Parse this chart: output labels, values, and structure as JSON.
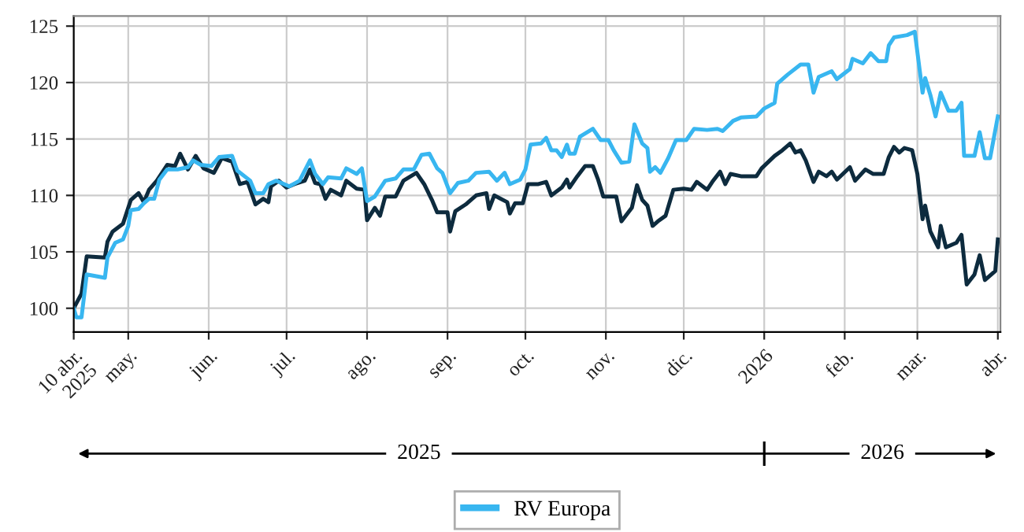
{
  "chart_data": {
    "type": "line",
    "xlim": [
      "2025-04-10",
      "2026-04-02"
    ],
    "ylim": [
      97.9,
      125.9
    ],
    "yticks": [
      100,
      105,
      110,
      115,
      120,
      125
    ],
    "xticks": [
      {
        "value": "2025-04-10",
        "label": "10 abr.\n2025"
      },
      {
        "value": "2025-05-01",
        "label": "may."
      },
      {
        "value": "2025-06-01",
        "label": "jun."
      },
      {
        "value": "2025-07-01",
        "label": "jul."
      },
      {
        "value": "2025-08-01",
        "label": "ago."
      },
      {
        "value": "2025-09-01",
        "label": "sep."
      },
      {
        "value": "2025-10-01",
        "label": "oct."
      },
      {
        "value": "2025-11-01",
        "label": "nov."
      },
      {
        "value": "2025-12-01",
        "label": "dic."
      },
      {
        "value": "2026-01-01",
        "label": "2026"
      },
      {
        "value": "2026-02-01",
        "label": "feb."
      },
      {
        "value": "2026-03-01",
        "label": "mar."
      },
      {
        "value": "2026-04-01",
        "label": "abr."
      }
    ],
    "grid": true,
    "legend": "bottom",
    "annotations": [
      "2025",
      "2026"
    ],
    "series": [
      {
        "color": "#0d2b3e",
        "x": [
          "2025-04-10",
          "2025-04-13",
          "2025-04-15",
          "2025-04-22",
          "2025-04-23",
          "2025-04-25",
          "2025-04-29",
          "2025-05-02",
          "2025-05-05",
          "2025-05-07",
          "2025-05-09",
          "2025-05-12",
          "2025-05-16",
          "2025-05-19",
          "2025-05-21",
          "2025-05-24",
          "2025-05-27",
          "2025-05-30",
          "2025-06-03",
          "2025-06-06",
          "2025-06-10",
          "2025-06-13",
          "2025-06-16",
          "2025-06-19",
          "2025-06-22",
          "2025-06-24",
          "2025-06-25",
          "2025-06-28",
          "2025-07-01",
          "2025-07-04",
          "2025-07-08",
          "2025-07-10",
          "2025-07-12",
          "2025-07-14",
          "2025-07-16",
          "2025-07-18",
          "2025-07-22",
          "2025-07-24",
          "2025-07-28",
          "2025-07-31",
          "2025-08-01",
          "2025-08-04",
          "2025-08-06",
          "2025-08-08",
          "2025-08-12",
          "2025-08-15",
          "2025-08-20",
          "2025-08-23",
          "2025-08-26",
          "2025-08-28",
          "2025-09-01",
          "2025-09-02",
          "2025-09-04",
          "2025-09-08",
          "2025-09-12",
          "2025-09-16",
          "2025-09-17",
          "2025-09-19",
          "2025-09-24",
          "2025-09-25",
          "2025-09-27",
          "2025-09-30",
          "2025-10-02",
          "2025-10-06",
          "2025-10-09",
          "2025-10-11",
          "2025-10-15",
          "2025-10-17",
          "2025-10-18",
          "2025-10-21",
          "2025-10-24",
          "2025-10-27",
          "2025-10-29",
          "2025-10-31",
          "2025-11-05",
          "2025-11-07",
          "2025-11-11",
          "2025-11-13",
          "2025-11-15",
          "2025-11-17",
          "2025-11-19",
          "2025-11-21",
          "2025-11-24",
          "2025-11-27",
          "2025-12-01",
          "2025-12-04",
          "2025-12-06",
          "2025-12-10",
          "2025-12-12",
          "2025-12-15",
          "2025-12-17",
          "2025-12-19",
          "2025-12-23",
          "2025-12-29",
          "2025-12-31",
          "2026-01-05",
          "2026-01-08",
          "2026-01-11",
          "2026-01-13",
          "2026-01-15",
          "2026-01-17",
          "2026-01-20",
          "2026-01-22",
          "2026-01-25",
          "2026-01-27",
          "2026-01-29",
          "2026-02-03",
          "2026-02-05",
          "2026-02-09",
          "2026-02-12",
          "2026-02-16",
          "2026-02-18",
          "2026-02-20",
          "2026-02-22",
          "2026-02-24",
          "2026-02-27",
          "2026-03-01",
          "2026-03-03",
          "2026-03-04",
          "2026-03-06",
          "2026-03-09",
          "2026-03-10",
          "2026-03-12",
          "2026-03-16",
          "2026-03-18",
          "2026-03-20",
          "2026-03-23",
          "2026-03-25",
          "2026-03-27",
          "2026-03-31",
          "2026-04-01"
        ],
        "values": [
          100,
          101.3,
          104.6,
          104.5,
          105.9,
          106.8,
          107.5,
          109.6,
          110.2,
          109.4,
          110.5,
          111.3,
          112.7,
          112.6,
          113.7,
          112.3,
          113.5,
          112.4,
          112.0,
          113.3,
          113.0,
          111.0,
          111.2,
          109.2,
          109.7,
          109.4,
          110.8,
          111.3,
          110.7,
          111.0,
          111.3,
          112.3,
          111.1,
          111.0,
          109.7,
          110.5,
          110.0,
          111.3,
          110.6,
          110.5,
          107.8,
          108.9,
          108.2,
          109.9,
          109.9,
          111.3,
          112.0,
          111.0,
          109.6,
          108.5,
          108.5,
          106.8,
          108.6,
          109.2,
          110.0,
          110.2,
          108.8,
          110.0,
          109.4,
          108.4,
          109.3,
          109.3,
          111.0,
          111.0,
          111.2,
          110.0,
          110.7,
          111.4,
          110.7,
          111.7,
          112.6,
          112.6,
          111.4,
          109.9,
          109.9,
          107.7,
          108.9,
          110.9,
          109.6,
          109.1,
          107.3,
          107.7,
          108.2,
          110.5,
          110.6,
          110.5,
          111.2,
          110.5,
          111.2,
          112.1,
          111.0,
          111.9,
          111.7,
          111.7,
          112.4,
          113.5,
          114.0,
          114.6,
          113.8,
          114.0,
          113.1,
          111.2,
          112.1,
          111.7,
          112.1,
          111.4,
          112.5,
          111.3,
          112.3,
          111.9,
          111.9,
          113.4,
          114.3,
          113.8,
          114.2,
          114.0,
          111.9,
          107.9,
          109.1,
          106.8,
          105.4,
          107.3,
          105.4,
          105.8,
          106.5,
          102.1,
          103.0,
          104.7,
          102.5,
          103.3,
          106.1
        ]
      },
      {
        "name": "RV Europa",
        "color": "#38b6f0",
        "x": [
          "2025-04-10",
          "2025-04-11",
          "2025-04-13",
          "2025-04-15",
          "2025-04-22",
          "2025-04-23",
          "2025-04-26",
          "2025-04-29",
          "2025-05-01",
          "2025-05-02",
          "2025-05-05",
          "2025-05-07",
          "2025-05-09",
          "2025-05-11",
          "2025-05-13",
          "2025-05-16",
          "2025-05-20",
          "2025-05-24",
          "2025-05-26",
          "2025-05-29",
          "2025-06-02",
          "2025-06-05",
          "2025-06-10",
          "2025-06-12",
          "2025-06-17",
          "2025-06-19",
          "2025-06-22",
          "2025-06-24",
          "2025-06-27",
          "2025-07-02",
          "2025-07-06",
          "2025-07-10",
          "2025-07-12",
          "2025-07-15",
          "2025-07-17",
          "2025-07-22",
          "2025-07-24",
          "2025-07-28",
          "2025-07-30",
          "2025-08-01",
          "2025-08-04",
          "2025-08-08",
          "2025-08-12",
          "2025-08-15",
          "2025-08-19",
          "2025-08-22",
          "2025-08-25",
          "2025-08-28",
          "2025-08-30",
          "2025-09-02",
          "2025-09-05",
          "2025-09-09",
          "2025-09-12",
          "2025-09-17",
          "2025-09-20",
          "2025-09-23",
          "2025-09-25",
          "2025-09-29",
          "2025-10-01",
          "2025-10-03",
          "2025-10-07",
          "2025-10-09",
          "2025-10-11",
          "2025-10-13",
          "2025-10-15",
          "2025-10-17",
          "2025-10-18",
          "2025-10-20",
          "2025-10-22",
          "2025-10-27",
          "2025-10-30",
          "2025-11-02",
          "2025-11-04",
          "2025-11-07",
          "2025-11-10",
          "2025-11-12",
          "2025-11-15",
          "2025-11-17",
          "2025-11-18",
          "2025-11-20",
          "2025-11-22",
          "2025-11-25",
          "2025-11-28",
          "2025-12-02",
          "2025-12-05",
          "2025-12-10",
          "2025-12-14",
          "2025-12-16",
          "2025-12-20",
          "2025-12-23",
          "2025-12-29",
          "2026-01-01",
          "2026-01-05",
          "2026-01-06",
          "2026-01-10",
          "2026-01-15",
          "2026-01-18",
          "2026-01-20",
          "2026-01-22",
          "2026-01-27",
          "2026-01-29",
          "2026-02-03",
          "2026-02-04",
          "2026-02-08",
          "2026-02-11",
          "2026-02-14",
          "2026-02-17",
          "2026-02-18",
          "2026-02-20",
          "2026-02-25",
          "2026-02-28",
          "2026-03-03",
          "2026-03-04",
          "2026-03-06",
          "2026-03-08",
          "2026-03-10",
          "2026-03-13",
          "2026-03-16",
          "2026-03-18",
          "2026-03-19",
          "2026-03-23",
          "2026-03-25",
          "2026-03-27",
          "2026-03-29",
          "2026-04-01"
        ],
        "values": [
          100,
          99.2,
          99.2,
          103.0,
          102.7,
          104.5,
          105.8,
          106.1,
          107.3,
          108.7,
          108.8,
          109.3,
          109.7,
          109.7,
          111.4,
          112.3,
          112.3,
          112.5,
          113.1,
          112.7,
          112.6,
          113.4,
          113.5,
          112.2,
          111.3,
          110.2,
          110.2,
          111.0,
          111.3,
          110.8,
          111.3,
          113.1,
          111.9,
          111.0,
          111.6,
          111.5,
          112.4,
          111.9,
          112.4,
          109.5,
          109.9,
          111.3,
          111.5,
          112.3,
          112.3,
          113.6,
          113.7,
          112.4,
          112.0,
          110.2,
          111.1,
          111.3,
          112.0,
          112.1,
          111.3,
          112.0,
          111.0,
          111.4,
          112.3,
          114.5,
          114.6,
          115.1,
          114.0,
          114.0,
          113.4,
          114.5,
          113.7,
          113.7,
          115.2,
          115.9,
          114.9,
          114.9,
          114.0,
          112.9,
          113.0,
          116.3,
          114.6,
          114.2,
          112.1,
          112.5,
          112.0,
          113.3,
          114.9,
          114.9,
          115.9,
          115.8,
          115.9,
          115.7,
          116.6,
          116.9,
          117.0,
          117.7,
          118.2,
          119.9,
          120.7,
          121.6,
          121.6,
          119.1,
          120.5,
          121.0,
          120.3,
          121.2,
          122.1,
          121.7,
          122.6,
          121.9,
          121.9,
          123.3,
          124.0,
          124.2,
          124.5,
          119.1,
          120.4,
          118.9,
          117.0,
          119.1,
          117.5,
          117.5,
          118.2,
          113.5,
          113.5,
          115.6,
          113.3,
          113.3,
          117.0
        ]
      }
    ]
  }
}
